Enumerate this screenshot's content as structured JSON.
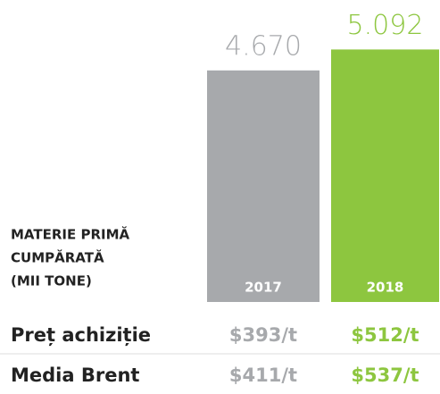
{
  "chart_data": {
    "type": "bar",
    "label_lines": [
      "MATERIE PRIMĂ",
      "CUMPĂRATĂ",
      "(MII TONE)"
    ],
    "categories": [
      "2017",
      "2018"
    ],
    "values": [
      4670,
      5092
    ],
    "value_labels": [
      "4.670",
      "5.092"
    ],
    "colors": [
      "#a7a9ac",
      "#8dc63f"
    ],
    "ylim": [
      0,
      6000
    ]
  },
  "table": {
    "rows": [
      [
        "Preț achiziție",
        "$393/t",
        "$512/t"
      ],
      [
        "Media Brent",
        "$411/t",
        "$537/t"
      ]
    ]
  }
}
